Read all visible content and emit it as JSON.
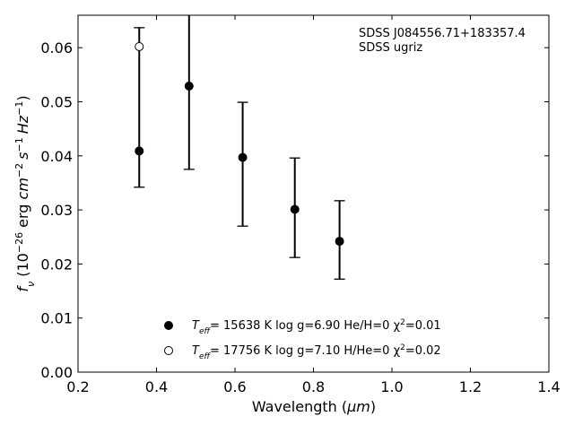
{
  "chart_data": {
    "type": "scatter",
    "xlabel_text": "Wavelength (",
    "xlabel_unit": "μm",
    "xlabel_close": ")",
    "ylabel": {
      "f": "f",
      "nu": "ν",
      "open": " (10",
      "exp1": "−26",
      "erg": " erg ",
      "cm": "cm",
      "exp2": "−2",
      "s": "s",
      "exp3": "−1",
      "hz": "Hz",
      "exp4": "−1",
      "close": ")"
    },
    "xlim": [
      0.2,
      1.4
    ],
    "ylim": [
      0.0,
      0.066
    ],
    "xticks": [
      "0.2",
      "0.4",
      "0.6",
      "0.8",
      "1.0",
      "1.2",
      "1.4"
    ],
    "xtick_values": [
      0.2,
      0.4,
      0.6,
      0.8,
      1.0,
      1.2,
      1.4
    ],
    "yticks": [
      "0.00",
      "0.01",
      "0.02",
      "0.03",
      "0.04",
      "0.05",
      "0.06"
    ],
    "ytick_values": [
      0.0,
      0.01,
      0.02,
      0.03,
      0.04,
      0.05,
      0.06
    ],
    "grid": false,
    "annotation_lines": [
      "SDSS J084556.71+183357.4",
      "SDSS ugriz"
    ],
    "observed": {
      "x": [
        0.356,
        0.483,
        0.6196,
        0.7525,
        0.8665
      ],
      "y": [
        0.0409,
        0.0529,
        0.0397,
        0.0301,
        0.0242
      ],
      "y_err_low": [
        0.0342,
        0.0375,
        0.027,
        0.0212,
        0.0172
      ],
      "y_err_high": [
        0.0637,
        0.0665,
        0.0499,
        0.0396,
        0.0317
      ]
    },
    "series": [
      {
        "marker": "filled-circle",
        "x": [
          0.356,
          0.483,
          0.6196,
          0.7525,
          0.8665
        ],
        "y": [
          0.0409,
          0.0529,
          0.0397,
          0.0301,
          0.0242
        ],
        "legend": {
          "T": "T",
          "eff": "eff",
          "rest": "= 15638 K  log g=6.90  He/H=0  χ",
          "sq": "2",
          "chi": "=0.01"
        }
      },
      {
        "marker": "open-circle",
        "x": [
          0.356
        ],
        "y": [
          0.0602
        ],
        "legend": {
          "T": "T",
          "eff": "eff",
          "rest": "= 17756 K  log g=7.10  H/He=0  χ",
          "sq": "2",
          "chi": "=0.02"
        }
      }
    ]
  }
}
